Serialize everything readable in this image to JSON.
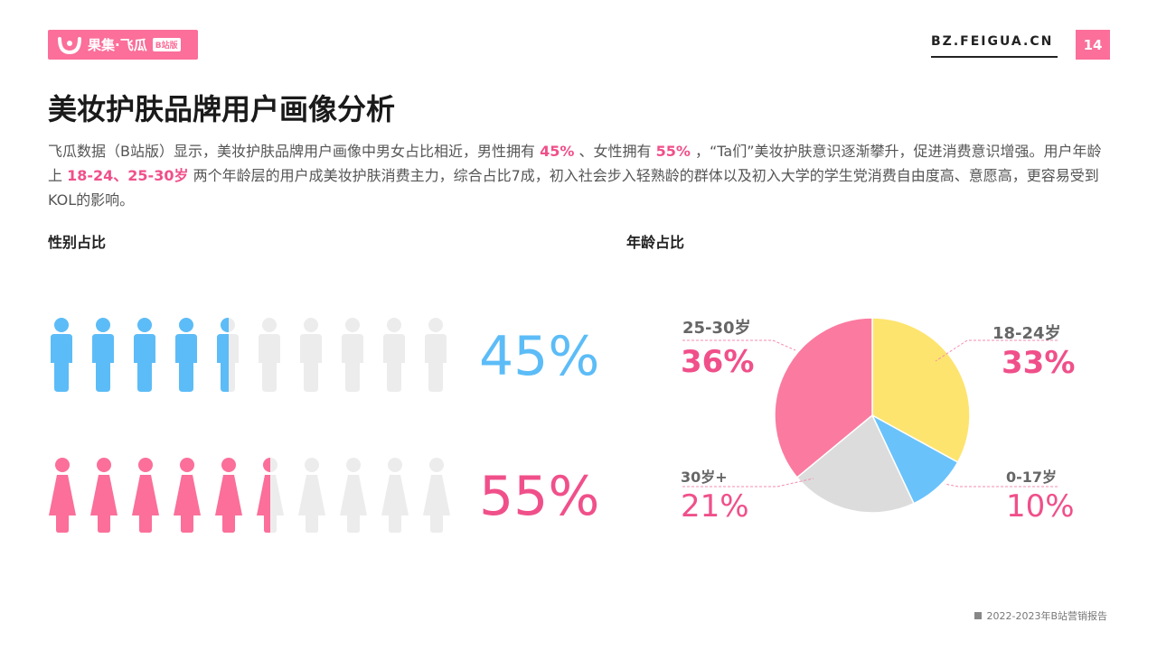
{
  "header": {
    "logo_text": "果集·飞瓜",
    "logo_tag": "B站版",
    "site": "BZ.FEIGUA.CN",
    "page_number": "14"
  },
  "title": "美妆护肤品牌用户画像分析",
  "description": {
    "p1": "飞瓜数据（B站版）显示，美妆护肤品牌用户画像中男女占比相近，男性拥有",
    "male": "45%",
    "p2": "、女性拥有",
    "female": "55%",
    "p3": "，“Ta们”美妆护肤意识逐渐攀升，促进消费意识增强。用户年龄上",
    "ages": "18-24、25-30岁",
    "p4": "两个年龄层的用户成美妆护肤消费主力，综合占比7成，初入社会步入轻熟龄的群体以及初入大学的学生党消费自由度高、意愿高，更容易受到KOL的影响。"
  },
  "colors": {
    "pink": "#fb6f9a",
    "blue": "#5cbcf7",
    "yellow": "#fde46f",
    "grey": "#dcdcdc",
    "light_grey": "#ececec"
  },
  "chart_data": [
    {
      "type": "pictogram",
      "title": "性别占比",
      "series": [
        {
          "name": "男",
          "value": 45,
          "label": "45%",
          "icon": "male-figure-icon",
          "color": "#5cbcf7"
        },
        {
          "name": "女",
          "value": 55,
          "label": "55%",
          "icon": "female-figure-icon",
          "color": "#fb6f9a"
        }
      ],
      "icon_count": 10
    },
    {
      "type": "pie",
      "title": "年龄占比",
      "slices": [
        {
          "label": "18-24岁",
          "value": 33,
          "display": "33%",
          "color": "#fde46f"
        },
        {
          "label": "0-17岁",
          "value": 10,
          "display": "10%",
          "color": "#6ac2fb"
        },
        {
          "label": "30岁+",
          "value": 21,
          "display": "21%",
          "color": "#dcdcdc"
        },
        {
          "label": "25-30岁",
          "value": 36,
          "display": "36%",
          "color": "#fb7aa0"
        }
      ]
    }
  ],
  "footer": "2022-2023年B站营销报告"
}
